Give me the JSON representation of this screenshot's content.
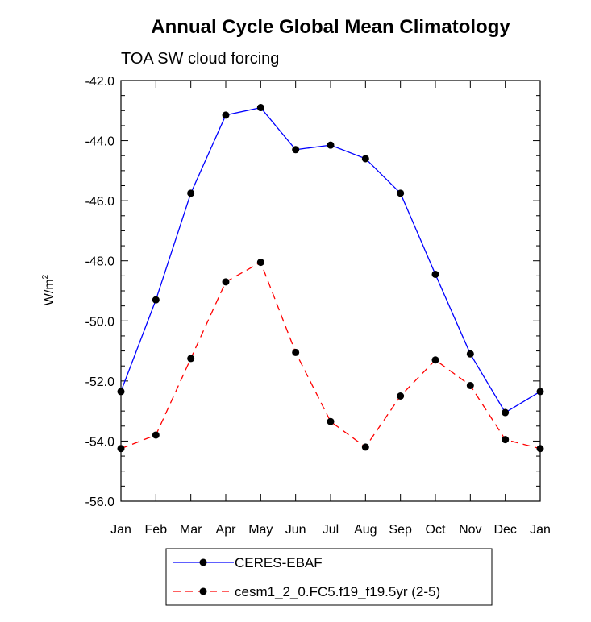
{
  "chart_data": {
    "type": "line",
    "title": "Annual Cycle Global Mean Climatology",
    "subtitle": "TOA SW cloud forcing",
    "ylabel": "W/m",
    "ylabel_sup": "2",
    "xlabel": "",
    "categories": [
      "Jan",
      "Feb",
      "Mar",
      "Apr",
      "May",
      "Jun",
      "Jul",
      "Aug",
      "Sep",
      "Oct",
      "Nov",
      "Dec",
      "Jan"
    ],
    "ylim": [
      -56.0,
      -42.0
    ],
    "yticks": [
      -42.0,
      -44.0,
      -46.0,
      -48.0,
      -50.0,
      -52.0,
      -54.0,
      -56.0
    ],
    "ytick_labels": [
      "-42.0",
      "-44.0",
      "-46.0",
      "-48.0",
      "-50.0",
      "-52.0",
      "-54.0",
      "-56.0"
    ],
    "grid": false,
    "legend_position": "bottom",
    "series": [
      {
        "name": "CERES-EBAF",
        "color": "#0000ff",
        "style": "solid",
        "values": [
          -52.35,
          -49.3,
          -45.75,
          -43.15,
          -42.9,
          -44.3,
          -44.15,
          -44.6,
          -45.75,
          -48.45,
          -51.1,
          -53.05,
          -52.35
        ]
      },
      {
        "name": "cesm1_2_0.FC5.f19_f19.5yr (2-5)",
        "color": "#ff0000",
        "style": "dashed",
        "values": [
          -54.25,
          -53.8,
          -51.25,
          -48.7,
          -48.05,
          -51.05,
          -53.35,
          -54.2,
          -52.5,
          -51.3,
          -52.15,
          -53.95,
          -54.25
        ]
      }
    ]
  }
}
